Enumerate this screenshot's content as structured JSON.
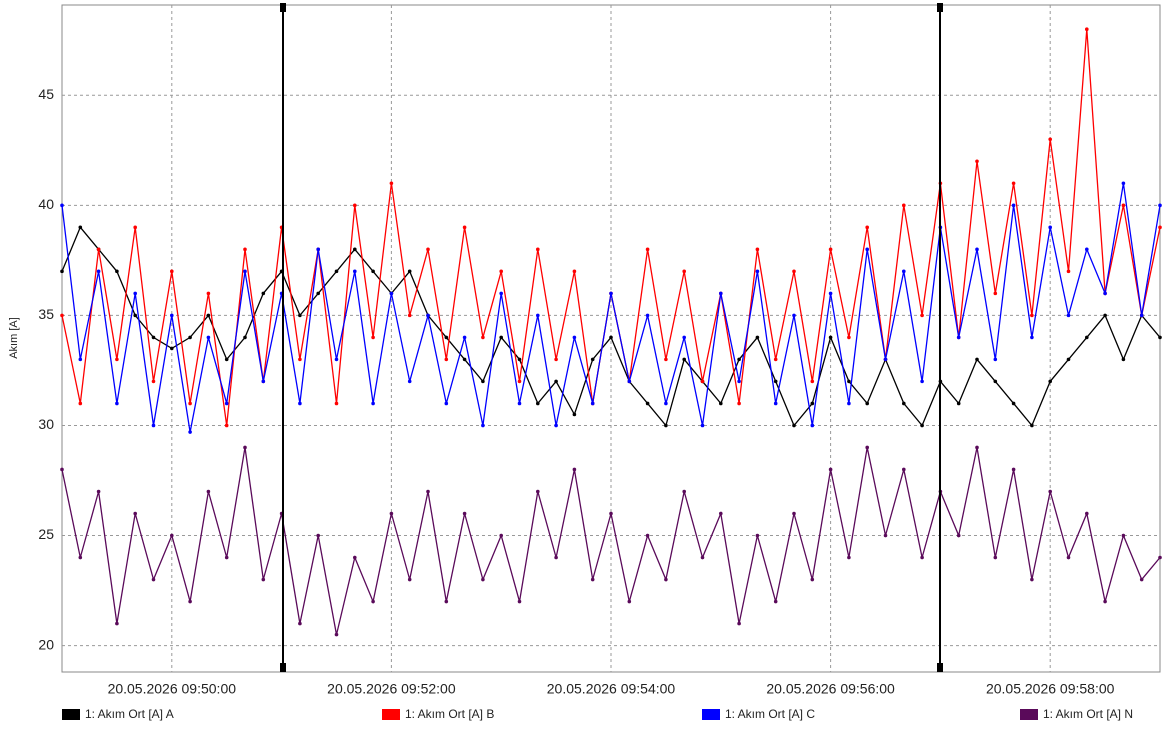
{
  "chart_data": {
    "type": "line",
    "y_label": "Akım [A]",
    "x": [
      "20.05.2026 09:49:00",
      "20.05.2026 09:49:10",
      "20.05.2026 09:49:20",
      "20.05.2026 09:49:30",
      "20.05.2026 09:49:40",
      "20.05.2026 09:49:50",
      "20.05.2026 09:50:00",
      "20.05.2026 09:50:10",
      "20.05.2026 09:50:20",
      "20.05.2026 09:50:30",
      "20.05.2026 09:50:40",
      "20.05.2026 09:50:50",
      "20.05.2026 09:51:00",
      "20.05.2026 09:51:10",
      "20.05.2026 09:51:20",
      "20.05.2026 09:51:30",
      "20.05.2026 09:51:40",
      "20.05.2026 09:51:50",
      "20.05.2026 09:52:00",
      "20.05.2026 09:52:10",
      "20.05.2026 09:52:20",
      "20.05.2026 09:52:30",
      "20.05.2026 09:52:40",
      "20.05.2026 09:52:50",
      "20.05.2026 09:53:00",
      "20.05.2026 09:53:10",
      "20.05.2026 09:53:20",
      "20.05.2026 09:53:30",
      "20.05.2026 09:53:40",
      "20.05.2026 09:53:50",
      "20.05.2026 09:54:00",
      "20.05.2026 09:54:10",
      "20.05.2026 09:54:20",
      "20.05.2026 09:54:30",
      "20.05.2026 09:54:40",
      "20.05.2026 09:54:50",
      "20.05.2026 09:55:00",
      "20.05.2026 09:55:10",
      "20.05.2026 09:55:20",
      "20.05.2026 09:55:30",
      "20.05.2026 09:55:40",
      "20.05.2026 09:55:50",
      "20.05.2026 09:56:00",
      "20.05.2026 09:56:10",
      "20.05.2026 09:56:20",
      "20.05.2026 09:56:30",
      "20.05.2026 09:56:40",
      "20.05.2026 09:56:50",
      "20.05.2026 09:57:00",
      "20.05.2026 09:57:10",
      "20.05.2026 09:57:20",
      "20.05.2026 09:57:30",
      "20.05.2026 09:57:40",
      "20.05.2026 09:57:50",
      "20.05.2026 09:58:00",
      "20.05.2026 09:58:10",
      "20.05.2026 09:58:20",
      "20.05.2026 09:58:30",
      "20.05.2026 09:58:40",
      "20.05.2026 09:58:50",
      "20.05.2026 09:59:00"
    ],
    "series": [
      {
        "name": "1: Akım Ort [A] A",
        "color": "#000000",
        "values": [
          37,
          39,
          38,
          37,
          35,
          34,
          33.5,
          34,
          35,
          33,
          34,
          36,
          37,
          35,
          36,
          37,
          38,
          37,
          36,
          37,
          35,
          34,
          33,
          32,
          34,
          33,
          31,
          32,
          30.5,
          33,
          34,
          32,
          31,
          30,
          33,
          32,
          31,
          33,
          34,
          32,
          30,
          31,
          34,
          32,
          31,
          33,
          31,
          30,
          32,
          31,
          33,
          32,
          31,
          30,
          32,
          33,
          34,
          35,
          33,
          35,
          34
        ]
      },
      {
        "name": "1: Akım Ort [A] B",
        "color": "#ff0000",
        "values": [
          35,
          31,
          38,
          33,
          39,
          32,
          37,
          31,
          36,
          30,
          38,
          32,
          39,
          33,
          38,
          31,
          40,
          34,
          41,
          35,
          38,
          33,
          39,
          34,
          37,
          32,
          38,
          33,
          37,
          31,
          36,
          32,
          38,
          33,
          37,
          32,
          36,
          31,
          38,
          33,
          37,
          32,
          38,
          34,
          39,
          33,
          40,
          35,
          41,
          34,
          42,
          36,
          41,
          35,
          43,
          37,
          48,
          36,
          40,
          35,
          39
        ]
      },
      {
        "name": "1: Akım Ort [A] C",
        "color": "#0000ff",
        "values": [
          40,
          33,
          37,
          31,
          36,
          30,
          35,
          29.7,
          34,
          31,
          37,
          32,
          36,
          31,
          38,
          33,
          37,
          31,
          36,
          32,
          35,
          31,
          34,
          30,
          36,
          31,
          35,
          30,
          34,
          31,
          36,
          32,
          35,
          31,
          34,
          30,
          36,
          32,
          37,
          31,
          35,
          30,
          36,
          31,
          38,
          33,
          37,
          32,
          39,
          34,
          38,
          33,
          40,
          34,
          39,
          35,
          38,
          36,
          41,
          35,
          40
        ]
      },
      {
        "name": "1: Akım Ort [A] N",
        "color": "#5a0a5a",
        "values": [
          28,
          24,
          27,
          21,
          26,
          23,
          25,
          22,
          27,
          24,
          29,
          23,
          26,
          21,
          25,
          20.5,
          24,
          22,
          26,
          23,
          27,
          22,
          26,
          23,
          25,
          22,
          27,
          24,
          28,
          23,
          26,
          22,
          25,
          23,
          27,
          24,
          26,
          21,
          25,
          22,
          26,
          23,
          28,
          24,
          29,
          25,
          28,
          24,
          27,
          25,
          29,
          24,
          28,
          23,
          27,
          24,
          26,
          22,
          25,
          23,
          24
        ]
      }
    ],
    "xlim": [
      "20.05.2026 09:49:00",
      "20.05.2026 09:59:00"
    ],
    "xticks": [
      "20.05.2026 09:50:00",
      "20.05.2026 09:52:00",
      "20.05.2026 09:54:00",
      "20.05.2026 09:56:00",
      "20.05.2026 09:58:00"
    ],
    "ylim": [
      18.8,
      49.1
    ],
    "yticks": [
      20,
      25,
      30,
      35,
      40,
      45
    ],
    "grid": true
  }
}
